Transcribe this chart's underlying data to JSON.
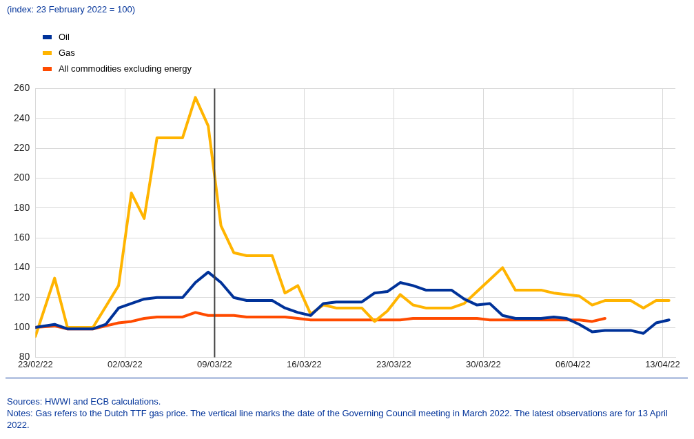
{
  "chart_data": {
    "type": "line",
    "subtitle": "(index: 23 February 2022 = 100)",
    "x": [
      "2022-02-23",
      "2022-02-24T12:00",
      "2022-02-25T12:00",
      "2022-02-26T12:00",
      "2022-02-27T12:00",
      "2022-02-28T12:00",
      "2022-03-01T12:00",
      "2022-03-02T12:00",
      "2022-03-03T12:00",
      "2022-03-04T12:00",
      "2022-03-05T12:00",
      "2022-03-06T12:00",
      "2022-03-07T12:00",
      "2022-03-08T12:00",
      "2022-03-09T12:00",
      "2022-03-10T12:00",
      "2022-03-11T12:00",
      "2022-03-12T12:00",
      "2022-03-13T12:00",
      "2022-03-14T12:00",
      "2022-03-15T12:00",
      "2022-03-16T12:00",
      "2022-03-17T12:00",
      "2022-03-18T12:00",
      "2022-03-19T12:00",
      "2022-03-20T12:00",
      "2022-03-21T12:00",
      "2022-03-22T12:00",
      "2022-03-23T12:00",
      "2022-03-24T12:00",
      "2022-03-25T12:00",
      "2022-03-26T12:00",
      "2022-03-27T12:00",
      "2022-03-28T12:00",
      "2022-03-29T12:00",
      "2022-03-30T12:00",
      "2022-03-31T12:00",
      "2022-04-01T12:00",
      "2022-04-02T12:00",
      "2022-04-03T12:00",
      "2022-04-04T12:00",
      "2022-04-05T12:00",
      "2022-04-06T12:00",
      "2022-04-07T12:00",
      "2022-04-08T12:00",
      "2022-04-09T12:00",
      "2022-04-10T12:00",
      "2022-04-11T12:00",
      "2022-04-12T12:00",
      "2022-04-13T12:00"
    ],
    "series": [
      {
        "name": "Oil",
        "color": "#003299",
        "values": [
          100,
          102,
          99,
          99,
          99,
          102,
          113,
          116,
          119,
          120,
          120,
          120,
          130,
          137,
          130,
          120,
          118,
          118,
          118,
          113,
          110,
          108,
          116,
          117,
          117,
          117,
          123,
          124,
          130,
          128,
          125,
          125,
          125,
          119,
          115,
          116,
          108,
          106,
          106,
          106,
          107,
          106,
          102,
          97,
          98,
          98,
          98,
          96,
          103,
          105
        ]
      },
      {
        "name": "Gas",
        "color": "#ffb400",
        "values": [
          94,
          133,
          100,
          100,
          100,
          114,
          128,
          190,
          173,
          227,
          227,
          227,
          254,
          235,
          168,
          150,
          148,
          148,
          148,
          123,
          128,
          109,
          115,
          113,
          113,
          113,
          104,
          111,
          122,
          115,
          113,
          113,
          113,
          116,
          124,
          132,
          140,
          125,
          125,
          125,
          123,
          122,
          121,
          115,
          118,
          118,
          118,
          113,
          118,
          118
        ]
      },
      {
        "name": "All commodities excluding energy",
        "color": "#ff4b00",
        "values": [
          100,
          101,
          99,
          99,
          99,
          101,
          103,
          104,
          106,
          107,
          107,
          107,
          110,
          108,
          108,
          108,
          107,
          107,
          107,
          107,
          106,
          105,
          105,
          105,
          105,
          105,
          105,
          105,
          105,
          106,
          106,
          106,
          106,
          106,
          106,
          105,
          105,
          105,
          105,
          105,
          105,
          105,
          105,
          104,
          106,
          null,
          null,
          null,
          null,
          null
        ]
      }
    ],
    "xlim": [
      "2022-02-23",
      "2022-04-14"
    ],
    "xticks": [
      {
        "value": "2022-02-23",
        "label": "23/02/22"
      },
      {
        "value": "2022-03-02",
        "label": "02/03/22"
      },
      {
        "value": "2022-03-09",
        "label": "09/03/22"
      },
      {
        "value": "2022-03-16",
        "label": "16/03/22"
      },
      {
        "value": "2022-03-23",
        "label": "23/03/22"
      },
      {
        "value": "2022-03-30",
        "label": "30/03/22"
      },
      {
        "value": "2022-04-06",
        "label": "06/04/22"
      },
      {
        "value": "2022-04-13",
        "label": "13/04/22"
      }
    ],
    "ylim": [
      80,
      260
    ],
    "yticks": [
      80,
      100,
      120,
      140,
      160,
      180,
      200,
      220,
      240,
      260
    ],
    "ref_lines": [
      {
        "axis": "x",
        "value": "2022-03-09",
        "color": "#404040"
      }
    ],
    "grid": true,
    "legend": "top left",
    "marker": "none",
    "line_style": "solid",
    "annotations": [
      "Sources: HWWI and ECB calculations.",
      "Notes: Gas refers to the Dutch TTF gas price. The vertical line marks the date of the Governing Council meeting in March 2022. The latest observations are for 13 April 2022."
    ]
  }
}
